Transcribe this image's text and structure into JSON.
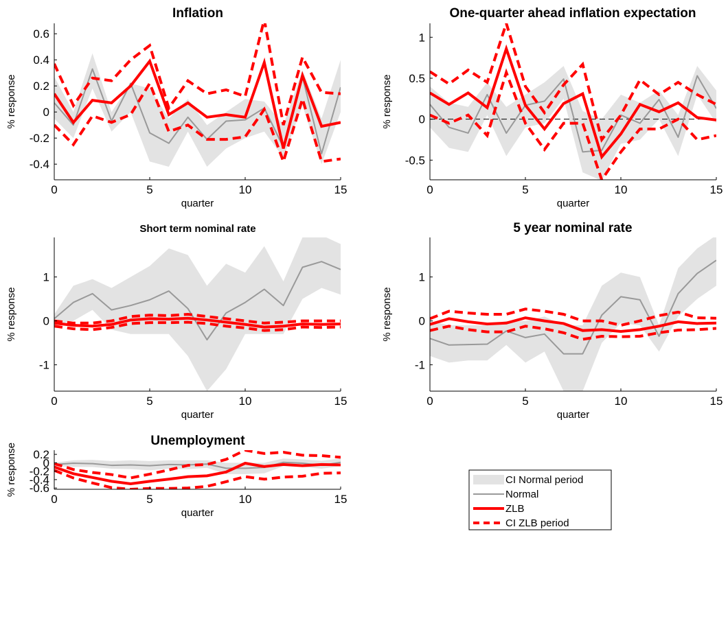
{
  "chart_data": [
    {
      "type": "line",
      "title": "Inflation",
      "xlabel": "quarter",
      "ylabel": "% response",
      "xlim": [
        0,
        15
      ],
      "ylim": [
        -0.52,
        0.68
      ],
      "xticks": [
        0,
        5,
        10,
        15
      ],
      "yticks": [
        -0.4,
        -0.2,
        0,
        0.2,
        0.4,
        0.6
      ],
      "ytick_labels": [
        "-0.4",
        "-0.2",
        "0",
        "0.2",
        "0.4",
        "0.6"
      ],
      "x": [
        0,
        1,
        2,
        3,
        4,
        5,
        6,
        7,
        8,
        9,
        10,
        11,
        12,
        13,
        14,
        15
      ],
      "normal_ci_upper": [
        0.27,
        0.0,
        0.45,
        0.0,
        0.22,
        0.18,
        -0.05,
        0.1,
        -0.1,
        0.0,
        0.1,
        0.08,
        -0.1,
        0.32,
        -0.05,
        0.4
      ],
      "normal_ci_lower": [
        -0.05,
        -0.2,
        0.18,
        -0.15,
        0.0,
        -0.38,
        -0.42,
        -0.15,
        -0.42,
        -0.28,
        -0.2,
        -0.15,
        -0.35,
        0.05,
        -0.4,
        0.0
      ],
      "normal": [
        0.07,
        -0.1,
        0.33,
        -0.07,
        0.22,
        -0.16,
        -0.24,
        -0.04,
        -0.21,
        -0.07,
        -0.06,
        0.03,
        -0.27,
        0.27,
        -0.32,
        0.19
      ],
      "zlb": [
        0.14,
        -0.08,
        0.09,
        0.07,
        0.2,
        0.39,
        -0.02,
        0.07,
        -0.04,
        -0.02,
        -0.04,
        0.38,
        -0.28,
        0.28,
        -0.11,
        -0.08
      ],
      "zlb_ci_upper": [
        0.37,
        0.05,
        0.26,
        0.24,
        0.4,
        0.51,
        0.03,
        0.24,
        0.14,
        0.17,
        0.12,
        0.71,
        -0.1,
        0.42,
        0.15,
        0.14
      ],
      "zlb_ci_lower": [
        -0.1,
        -0.25,
        -0.03,
        -0.08,
        -0.02,
        0.22,
        -0.15,
        -0.1,
        -0.21,
        -0.21,
        -0.19,
        0.02,
        -0.38,
        0.1,
        -0.38,
        -0.36
      ]
    },
    {
      "type": "line",
      "title": "One-quarter ahead inflation expectation",
      "xlabel": "quarter",
      "ylabel": "% response",
      "xlim": [
        0,
        15
      ],
      "ylim": [
        -0.74,
        1.17
      ],
      "xticks": [
        0,
        5,
        10,
        15
      ],
      "yticks": [
        -0.5,
        0,
        0.5,
        1
      ],
      "ytick_labels": [
        "-0.5",
        "0",
        "0.5",
        "1"
      ],
      "zero_line": true,
      "x": [
        0,
        1,
        2,
        3,
        4,
        5,
        6,
        7,
        8,
        9,
        10,
        11,
        12,
        13,
        14,
        15
      ],
      "normal_ci_upper": [
        0.4,
        0.2,
        0.15,
        0.45,
        0.15,
        0.3,
        0.45,
        0.65,
        0.1,
        0.0,
        0.3,
        0.2,
        0.35,
        0.05,
        0.65,
        0.35
      ],
      "normal_ci_lower": [
        -0.1,
        -0.35,
        -0.4,
        0.05,
        -0.45,
        -0.1,
        -0.05,
        0.25,
        -0.65,
        -0.75,
        -0.3,
        -0.25,
        0.0,
        -0.45,
        0.3,
        -0.05
      ],
      "normal": [
        0.18,
        -0.1,
        -0.17,
        0.3,
        -0.17,
        0.17,
        0.22,
        0.49,
        -0.4,
        -0.38,
        0.05,
        -0.05,
        0.24,
        -0.22,
        0.53,
        0.13
      ],
      "zlb": [
        0.32,
        0.18,
        0.32,
        0.14,
        0.86,
        0.17,
        -0.12,
        0.19,
        0.31,
        -0.46,
        -0.18,
        0.18,
        0.09,
        0.2,
        0.02,
        -0.01
      ],
      "zlb_ci_upper": [
        0.58,
        0.43,
        0.6,
        0.45,
        1.17,
        0.4,
        0.08,
        0.42,
        0.67,
        -0.25,
        0.05,
        0.48,
        0.3,
        0.45,
        0.3,
        0.18
      ],
      "zlb_ci_lower": [
        0.05,
        -0.05,
        0.05,
        -0.2,
        0.57,
        -0.05,
        -0.37,
        -0.05,
        -0.05,
        -0.74,
        -0.4,
        -0.12,
        -0.12,
        0.0,
        -0.25,
        -0.2
      ]
    },
    {
      "type": "line",
      "title": "Short term nominal rate",
      "xlabel": "quarter",
      "ylabel": "% response",
      "xlim": [
        0,
        15
      ],
      "ylim": [
        -1.6,
        1.9
      ],
      "xticks": [
        0,
        5,
        10,
        15
      ],
      "yticks": [
        -1,
        0,
        1
      ],
      "ytick_labels": [
        "-1",
        "0",
        "1"
      ],
      "x": [
        0,
        1,
        2,
        3,
        4,
        5,
        6,
        7,
        8,
        9,
        10,
        11,
        12,
        13,
        14,
        15
      ],
      "normal_ci_upper": [
        0.15,
        0.8,
        0.95,
        0.75,
        1.0,
        1.25,
        1.65,
        1.5,
        0.8,
        1.3,
        1.1,
        1.7,
        0.9,
        1.9,
        1.95,
        1.75
      ],
      "normal_ci_lower": [
        -0.1,
        0.0,
        0.25,
        -0.2,
        -0.3,
        -0.3,
        -0.3,
        -0.8,
        -1.6,
        -1.1,
        -0.3,
        -0.3,
        -0.3,
        0.5,
        0.75,
        0.6
      ],
      "normal": [
        0.05,
        0.42,
        0.62,
        0.25,
        0.35,
        0.48,
        0.68,
        0.28,
        -0.43,
        0.18,
        0.42,
        0.72,
        0.35,
        1.22,
        1.35,
        1.17
      ],
      "zlb": [
        -0.05,
        -0.1,
        -0.12,
        -0.08,
        0.02,
        0.05,
        0.04,
        0.06,
        0.02,
        -0.03,
        -0.08,
        -0.14,
        -0.12,
        -0.07,
        -0.08,
        -0.07
      ],
      "zlb_ci_upper": [
        0.0,
        -0.05,
        -0.05,
        0.0,
        0.1,
        0.13,
        0.12,
        0.15,
        0.1,
        0.05,
        0.0,
        -0.05,
        -0.03,
        0.0,
        0.0,
        0.0
      ],
      "zlb_ci_lower": [
        -0.12,
        -0.18,
        -0.2,
        -0.15,
        -0.06,
        -0.04,
        -0.04,
        -0.03,
        -0.06,
        -0.12,
        -0.16,
        -0.22,
        -0.2,
        -0.14,
        -0.15,
        -0.14
      ]
    },
    {
      "type": "line",
      "title": "5 year nominal rate",
      "xlabel": "quarter",
      "ylabel": "% response",
      "xlim": [
        0,
        15
      ],
      "ylim": [
        -1.6,
        1.9
      ],
      "xticks": [
        0,
        5,
        10,
        15
      ],
      "yticks": [
        -1,
        0,
        1
      ],
      "ytick_labels": [
        "-1",
        "0",
        "1"
      ],
      "x": [
        0,
        1,
        2,
        3,
        4,
        5,
        6,
        7,
        8,
        9,
        10,
        11,
        12,
        13,
        14,
        15
      ],
      "normal_ci_upper": [
        0.0,
        -0.1,
        -0.1,
        -0.1,
        0.0,
        0.0,
        0.1,
        -0.1,
        -0.1,
        0.8,
        1.1,
        1.0,
        -0.1,
        1.2,
        1.65,
        1.95
      ],
      "normal_ci_lower": [
        -0.8,
        -0.95,
        -0.9,
        -0.9,
        -0.55,
        -0.95,
        -0.7,
        -1.6,
        -1.6,
        -0.5,
        -0.05,
        -0.1,
        -0.7,
        0.1,
        0.5,
        0.8
      ],
      "normal": [
        -0.4,
        -0.55,
        -0.54,
        -0.53,
        -0.23,
        -0.38,
        -0.3,
        -0.75,
        -0.75,
        0.13,
        0.55,
        0.48,
        -0.35,
        0.62,
        1.08,
        1.38
      ],
      "zlb": [
        -0.08,
        0.05,
        -0.02,
        -0.07,
        -0.05,
        0.07,
        0.0,
        -0.06,
        -0.22,
        -0.2,
        -0.24,
        -0.2,
        -0.12,
        -0.02,
        -0.06,
        -0.05
      ],
      "zlb_ci_upper": [
        0.05,
        0.22,
        0.18,
        0.15,
        0.15,
        0.27,
        0.22,
        0.15,
        0.0,
        0.0,
        -0.1,
        0.0,
        0.12,
        0.2,
        0.07,
        0.06
      ],
      "zlb_ci_lower": [
        -0.22,
        -0.12,
        -0.2,
        -0.25,
        -0.25,
        -0.12,
        -0.18,
        -0.27,
        -0.42,
        -0.35,
        -0.36,
        -0.35,
        -0.27,
        -0.21,
        -0.2,
        -0.17
      ]
    },
    {
      "type": "line",
      "title": "Unemployment",
      "xlabel": "quarter",
      "ylabel": "% response",
      "xlim": [
        0,
        15
      ],
      "ylim": [
        -0.63,
        0.3
      ],
      "xticks": [
        0,
        5,
        10,
        15
      ],
      "yticks": [
        -0.6,
        -0.4,
        -0.2,
        0,
        0.2
      ],
      "ytick_labels": [
        "-0.6",
        "-0.4",
        "-0.2",
        "0",
        "0.2"
      ],
      "x": [
        0,
        1,
        2,
        3,
        4,
        5,
        6,
        7,
        8,
        9,
        10,
        11,
        12,
        13,
        14,
        15
      ],
      "normal_ci_upper": [
        0.0,
        0.06,
        0.07,
        0.04,
        0.06,
        0.04,
        0.06,
        0.06,
        0.06,
        0.0,
        0.0,
        0.0,
        0.1,
        0.08,
        0.05,
        0.1
      ],
      "normal_ci_lower": [
        -0.08,
        -0.1,
        -0.1,
        -0.14,
        -0.15,
        -0.18,
        -0.14,
        -0.15,
        -0.12,
        -0.27,
        -0.27,
        -0.25,
        -0.08,
        -0.1,
        -0.14,
        -0.08
      ],
      "normal": [
        -0.04,
        -0.01,
        -0.02,
        -0.06,
        -0.05,
        -0.07,
        -0.04,
        -0.05,
        -0.03,
        -0.13,
        -0.13,
        -0.11,
        0.01,
        -0.01,
        -0.06,
        0.01
      ],
      "zlb": [
        -0.1,
        -0.26,
        -0.35,
        -0.44,
        -0.5,
        -0.44,
        -0.39,
        -0.33,
        -0.31,
        -0.22,
        -0.01,
        -0.09,
        -0.04,
        -0.07,
        -0.04,
        -0.05
      ],
      "zlb_ci_upper": [
        -0.02,
        -0.16,
        -0.23,
        -0.28,
        -0.36,
        -0.27,
        -0.17,
        -0.06,
        -0.04,
        0.08,
        0.3,
        0.22,
        0.25,
        0.18,
        0.17,
        0.13
      ],
      "zlb_ci_lower": [
        -0.18,
        -0.36,
        -0.48,
        -0.59,
        -0.63,
        -0.61,
        -0.61,
        -0.6,
        -0.56,
        -0.45,
        -0.33,
        -0.39,
        -0.34,
        -0.32,
        -0.25,
        -0.24
      ]
    }
  ],
  "legend": {
    "entries": [
      {
        "label": "CI Normal period",
        "style": "band"
      },
      {
        "label": "Normal",
        "style": "thin-solid"
      },
      {
        "label": "ZLB",
        "style": "thick-solid"
      },
      {
        "label": "CI ZLB period",
        "style": "thick-dashed"
      }
    ]
  },
  "colors": {
    "ci_normal_fill": "#e3e3e3",
    "normal_line": "#999999",
    "zlb_line": "#ff0000",
    "zero_line": "#000000",
    "axis": "#000000"
  }
}
